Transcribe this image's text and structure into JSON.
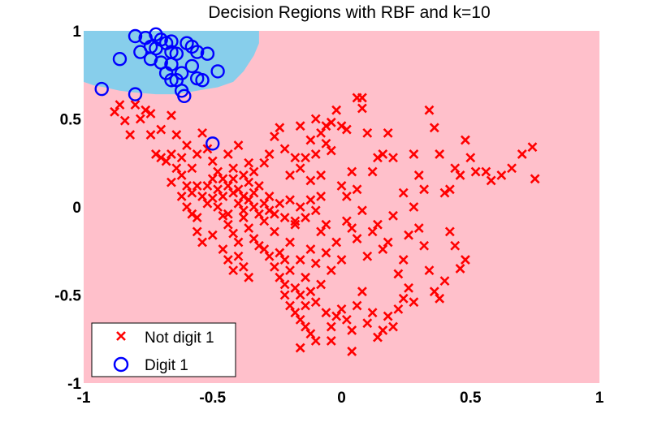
{
  "chart_data": {
    "type": "scatter",
    "title": "Decision Regions with RBF and k=10",
    "xlabel": "",
    "ylabel": "",
    "xlim": [
      -1,
      1
    ],
    "ylim": [
      -1,
      1
    ],
    "grid": false,
    "legend_position": "bottom-left",
    "xticks": [
      -1,
      -0.5,
      0,
      0.5,
      1
    ],
    "yticks": [
      -1,
      -0.5,
      0,
      0.5,
      1
    ],
    "xtick_labels": [
      "-1",
      "-0.5",
      "0",
      "0.5",
      "1"
    ],
    "ytick_labels": [
      "-1",
      "-0.5",
      "0",
      "0.5",
      "1"
    ],
    "regions": {
      "background_color": "#ffc0cb",
      "digit1_color": "#87ceeb",
      "digit1_boundary": [
        [
          -1.0,
          0.71
        ],
        [
          -0.96,
          0.69
        ],
        [
          -0.92,
          0.68
        ],
        [
          -0.86,
          0.66
        ],
        [
          -0.8,
          0.65
        ],
        [
          -0.72,
          0.64
        ],
        [
          -0.64,
          0.64
        ],
        [
          -0.56,
          0.66
        ],
        [
          -0.48,
          0.68
        ],
        [
          -0.42,
          0.71
        ],
        [
          -0.38,
          0.77
        ],
        [
          -0.34,
          0.86
        ],
        [
          -0.32,
          0.93
        ],
        [
          -0.32,
          1.0
        ]
      ]
    },
    "series": [
      {
        "name": "Not digit 1",
        "marker": "x",
        "color": "#ff0000",
        "points": [
          [
            -0.88,
            0.54
          ],
          [
            -0.86,
            0.58
          ],
          [
            -0.84,
            0.49
          ],
          [
            -0.82,
            0.41
          ],
          [
            -0.8,
            0.58
          ],
          [
            -0.78,
            0.5
          ],
          [
            -0.76,
            0.55
          ],
          [
            -0.74,
            0.53
          ],
          [
            -0.7,
            0.44
          ],
          [
            -0.66,
            0.52
          ],
          [
            -0.64,
            0.41
          ],
          [
            -0.74,
            0.41
          ],
          [
            -0.72,
            0.3
          ],
          [
            -0.7,
            0.28
          ],
          [
            -0.68,
            0.26
          ],
          [
            -0.66,
            0.3
          ],
          [
            -0.64,
            0.22
          ],
          [
            -0.62,
            0.28
          ],
          [
            -0.6,
            0.35
          ],
          [
            -0.58,
            0.22
          ],
          [
            -0.56,
            0.3
          ],
          [
            -0.54,
            0.42
          ],
          [
            -0.52,
            0.33
          ],
          [
            -0.5,
            0.26
          ],
          [
            -0.48,
            0.2
          ],
          [
            -0.46,
            0.16
          ],
          [
            -0.44,
            0.3
          ],
          [
            -0.42,
            0.22
          ],
          [
            -0.4,
            0.35
          ],
          [
            -0.38,
            0.18
          ],
          [
            -0.36,
            0.25
          ],
          [
            -0.34,
            0.2
          ],
          [
            -0.32,
            0.12
          ],
          [
            -0.3,
            0.25
          ],
          [
            -0.28,
            0.3
          ],
          [
            -0.26,
            0.4
          ],
          [
            -0.24,
            0.45
          ],
          [
            -0.22,
            0.33
          ],
          [
            -0.2,
            0.18
          ],
          [
            -0.18,
            0.28
          ],
          [
            -0.16,
            0.22
          ],
          [
            -0.14,
            0.28
          ],
          [
            -0.12,
            0.15
          ],
          [
            -0.1,
            0.3
          ],
          [
            -0.08,
            0.18
          ],
          [
            -0.06,
            0.36
          ],
          [
            -0.04,
            0.48
          ],
          [
            -0.02,
            0.55
          ],
          [
            0.0,
            0.46
          ],
          [
            0.02,
            0.44
          ],
          [
            0.04,
            0.2
          ],
          [
            0.06,
            0.62
          ],
          [
            0.08,
            0.56
          ],
          [
            0.1,
            0.42
          ],
          [
            0.12,
            0.2
          ],
          [
            0.14,
            0.28
          ],
          [
            0.16,
            0.3
          ],
          [
            0.18,
            0.42
          ],
          [
            0.2,
            0.28
          ],
          [
            0.24,
            0.08
          ],
          [
            0.28,
            0.3
          ],
          [
            0.3,
            0.18
          ],
          [
            0.32,
            0.1
          ],
          [
            0.34,
            0.55
          ],
          [
            0.36,
            0.45
          ],
          [
            0.38,
            0.3
          ],
          [
            0.4,
            0.08
          ],
          [
            0.42,
            0.1
          ],
          [
            0.44,
            0.22
          ],
          [
            0.46,
            0.18
          ],
          [
            0.48,
            0.38
          ],
          [
            0.5,
            0.28
          ],
          [
            0.52,
            0.2
          ],
          [
            0.56,
            0.2
          ],
          [
            0.58,
            0.15
          ],
          [
            0.62,
            0.18
          ],
          [
            0.66,
            0.22
          ],
          [
            0.7,
            0.3
          ],
          [
            0.74,
            0.34
          ],
          [
            0.75,
            0.16
          ],
          [
            -0.5,
            0.05
          ],
          [
            -0.48,
            0.0
          ],
          [
            -0.46,
            -0.05
          ],
          [
            -0.44,
            -0.1
          ],
          [
            -0.42,
            -0.15
          ],
          [
            -0.4,
            -0.2
          ],
          [
            -0.38,
            -0.06
          ],
          [
            -0.36,
            -0.12
          ],
          [
            -0.34,
            -0.18
          ],
          [
            -0.32,
            -0.22
          ],
          [
            -0.3,
            -0.08
          ],
          [
            -0.28,
            -0.02
          ],
          [
            -0.26,
            -0.14
          ],
          [
            -0.24,
            -0.26
          ],
          [
            -0.22,
            -0.3
          ],
          [
            -0.2,
            -0.2
          ],
          [
            -0.18,
            -0.1
          ],
          [
            -0.16,
            -0.3
          ],
          [
            -0.14,
            -0.4
          ],
          [
            -0.12,
            -0.24
          ],
          [
            -0.1,
            -0.32
          ],
          [
            -0.08,
            -0.14
          ],
          [
            -0.06,
            -0.26
          ],
          [
            -0.04,
            -0.36
          ],
          [
            -0.02,
            -0.2
          ],
          [
            0.0,
            -0.3
          ],
          [
            0.02,
            -0.08
          ],
          [
            0.04,
            -0.12
          ],
          [
            0.06,
            -0.18
          ],
          [
            0.08,
            -0.02
          ],
          [
            0.1,
            -0.28
          ],
          [
            0.12,
            -0.14
          ],
          [
            0.14,
            -0.1
          ],
          [
            0.16,
            -0.24
          ],
          [
            0.18,
            -0.2
          ],
          [
            0.2,
            -0.05
          ],
          [
            0.22,
            -0.38
          ],
          [
            0.24,
            -0.3
          ],
          [
            0.26,
            -0.16
          ],
          [
            0.28,
            0.0
          ],
          [
            0.3,
            -0.12
          ],
          [
            0.32,
            -0.22
          ],
          [
            0.34,
            -0.36
          ],
          [
            0.36,
            -0.48
          ],
          [
            0.38,
            -0.52
          ],
          [
            0.4,
            -0.42
          ],
          [
            0.42,
            -0.14
          ],
          [
            0.44,
            -0.22
          ],
          [
            0.46,
            -0.35
          ],
          [
            0.48,
            -0.3
          ],
          [
            -0.44,
            -0.04
          ],
          [
            -0.42,
            0.08
          ],
          [
            -0.4,
            0.02
          ],
          [
            -0.38,
            -0.02
          ],
          [
            -0.36,
            0.04
          ],
          [
            -0.34,
            0.0
          ],
          [
            -0.32,
            -0.04
          ],
          [
            -0.3,
            0.02
          ],
          [
            -0.28,
            0.06
          ],
          [
            -0.26,
            -0.04
          ],
          [
            -0.24,
            0.02
          ],
          [
            -0.22,
            -0.06
          ],
          [
            -0.2,
            0.04
          ],
          [
            -0.18,
            -0.08
          ],
          [
            -0.16,
            0.0
          ],
          [
            -0.14,
            -0.06
          ],
          [
            -0.12,
            0.04
          ],
          [
            -0.1,
            -0.02
          ],
          [
            -0.08,
            0.06
          ],
          [
            -0.06,
            -0.1
          ],
          [
            -0.52,
            0.12
          ],
          [
            -0.5,
            0.16
          ],
          [
            -0.48,
            0.1
          ],
          [
            -0.46,
            0.06
          ],
          [
            -0.44,
            0.12
          ],
          [
            -0.42,
            0.16
          ],
          [
            -0.4,
            0.1
          ],
          [
            -0.38,
            0.06
          ],
          [
            -0.36,
            0.14
          ],
          [
            -0.34,
            0.08
          ],
          [
            -0.3,
            -0.24
          ],
          [
            -0.28,
            -0.28
          ],
          [
            -0.26,
            -0.34
          ],
          [
            -0.24,
            -0.4
          ],
          [
            -0.22,
            -0.44
          ],
          [
            -0.2,
            -0.36
          ],
          [
            -0.18,
            -0.46
          ],
          [
            -0.16,
            -0.5
          ],
          [
            -0.14,
            -0.56
          ],
          [
            -0.12,
            -0.48
          ],
          [
            -0.1,
            -0.54
          ],
          [
            -0.08,
            -0.44
          ],
          [
            -0.06,
            -0.6
          ],
          [
            -0.04,
            -0.68
          ],
          [
            -0.02,
            -0.62
          ],
          [
            0.0,
            -0.58
          ],
          [
            0.02,
            -0.64
          ],
          [
            0.04,
            -0.7
          ],
          [
            0.06,
            -0.56
          ],
          [
            0.08,
            -0.48
          ],
          [
            0.1,
            -0.66
          ],
          [
            0.12,
            -0.6
          ],
          [
            0.14,
            -0.74
          ],
          [
            0.16,
            -0.7
          ],
          [
            0.18,
            -0.62
          ],
          [
            0.2,
            -0.68
          ],
          [
            0.22,
            -0.58
          ],
          [
            0.24,
            -0.52
          ],
          [
            0.26,
            -0.46
          ],
          [
            0.28,
            -0.54
          ],
          [
            -0.58,
            -0.04
          ],
          [
            -0.56,
            -0.14
          ],
          [
            -0.54,
            -0.2
          ],
          [
            -0.5,
            -0.16
          ],
          [
            -0.46,
            -0.24
          ],
          [
            -0.44,
            -0.3
          ],
          [
            -0.42,
            -0.36
          ],
          [
            -0.4,
            -0.28
          ],
          [
            -0.38,
            -0.34
          ],
          [
            -0.36,
            -0.4
          ],
          [
            -0.22,
            -0.5
          ],
          [
            -0.2,
            -0.56
          ],
          [
            -0.18,
            -0.6
          ],
          [
            -0.16,
            -0.64
          ],
          [
            -0.14,
            -0.68
          ],
          [
            -0.12,
            -0.72
          ],
          [
            -0.1,
            -0.76
          ],
          [
            -0.16,
            -0.8
          ],
          [
            -0.04,
            -0.76
          ],
          [
            0.04,
            -0.82
          ],
          [
            0.08,
            0.62
          ],
          [
            -0.16,
            0.46
          ],
          [
            -0.12,
            0.38
          ],
          [
            -0.1,
            0.5
          ],
          [
            -0.08,
            0.42
          ],
          [
            -0.06,
            0.46
          ],
          [
            -0.04,
            0.32
          ],
          [
            0.0,
            0.12
          ],
          [
            0.02,
            0.06
          ],
          [
            0.06,
            0.1
          ],
          [
            -0.62,
            0.18
          ],
          [
            -0.6,
            0.12
          ],
          [
            -0.58,
            0.08
          ],
          [
            -0.56,
            0.12
          ],
          [
            -0.54,
            0.06
          ],
          [
            -0.52,
            0.02
          ],
          [
            -0.6,
            0.0
          ],
          [
            -0.56,
            -0.06
          ],
          [
            -0.62,
            0.06
          ],
          [
            -0.66,
            0.14
          ]
        ]
      },
      {
        "name": "Digit 1",
        "marker": "o",
        "color": "#0000ff",
        "points": [
          [
            -0.93,
            0.67
          ],
          [
            -0.86,
            0.84
          ],
          [
            -0.8,
            0.97
          ],
          [
            -0.78,
            0.88
          ],
          [
            -0.76,
            0.96
          ],
          [
            -0.74,
            0.91
          ],
          [
            -0.72,
            0.98
          ],
          [
            -0.72,
            0.9
          ],
          [
            -0.7,
            0.95
          ],
          [
            -0.68,
            0.93
          ],
          [
            -0.66,
            0.88
          ],
          [
            -0.66,
            0.81
          ],
          [
            -0.64,
            0.72
          ],
          [
            -0.62,
            0.66
          ],
          [
            -0.6,
            0.93
          ],
          [
            -0.58,
            0.91
          ],
          [
            -0.56,
            0.88
          ],
          [
            -0.62,
            0.76
          ],
          [
            -0.66,
            0.72
          ],
          [
            -0.56,
            0.73
          ],
          [
            -0.52,
            0.87
          ],
          [
            -0.48,
            0.77
          ],
          [
            -0.8,
            0.64
          ],
          [
            -0.68,
            0.76
          ],
          [
            -0.7,
            0.82
          ],
          [
            -0.74,
            0.84
          ],
          [
            -0.64,
            0.87
          ],
          [
            -0.58,
            0.8
          ],
          [
            -0.66,
            0.94
          ],
          [
            -0.54,
            0.72
          ],
          [
            -0.61,
            0.63
          ],
          [
            -0.5,
            0.36
          ]
        ]
      }
    ]
  }
}
